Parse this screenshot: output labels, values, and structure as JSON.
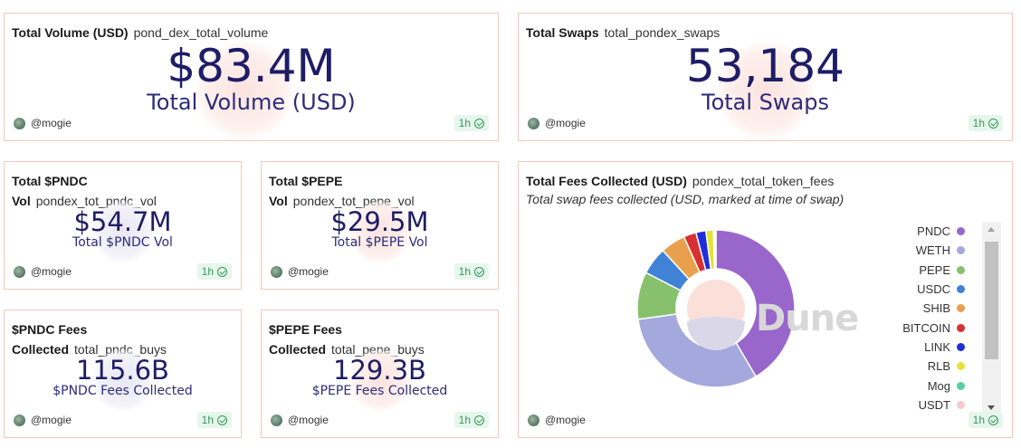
{
  "cards": {
    "total_volume": {
      "title": "Total Volume (USD)",
      "query": "pond_dex_total_volume",
      "value": "$83.4M",
      "label": "Total Volume (USD)",
      "user": "@mogie",
      "refresh": "1h"
    },
    "total_swaps": {
      "title": "Total Swaps",
      "query": "total_pondex_swaps",
      "value": "53,184",
      "label": "Total Swaps",
      "user": "@mogie",
      "refresh": "1h"
    },
    "pndc_vol": {
      "title_line1": "Total $PNDC",
      "title_line2": "Vol",
      "query": "pondex_tot_pndc_vol",
      "value": "$54.7M",
      "label": "Total $PNDC Vol",
      "user": "@mogie",
      "refresh": "1h"
    },
    "pepe_vol": {
      "title_line1": "Total $PEPE",
      "title_line2": "Vol",
      "query": "pondex_tot_pepe_vol",
      "value": "$29.5M",
      "label": "Total $PEPE Vol",
      "user": "@mogie",
      "refresh": "1h"
    },
    "pndc_fees": {
      "title_line1": "$PNDC Fees",
      "title_line2": "Collected",
      "query": "total_pndc_buys",
      "value": "115.6B",
      "label": "$PNDC Fees Collected",
      "user": "@mogie",
      "refresh": "1h"
    },
    "pepe_fees": {
      "title_line1": "$PEPE Fees",
      "title_line2": "Collected",
      "query": "total_pepe_buys",
      "value": "129.3B",
      "label": "$PEPE Fees Collected",
      "user": "@mogie",
      "refresh": "1h"
    },
    "fees_chart": {
      "title": "Total Fees Collected (USD)",
      "query": "pondex_total_token_fees",
      "subtitle": "Total swap fees collected (USD, marked at time of swap)",
      "watermark": "Dune",
      "user": "@mogie",
      "refresh": "1h"
    }
  },
  "chart_data": {
    "type": "pie",
    "title": "Total Fees Collected (USD)",
    "subtitle": "Total swap fees collected (USD, marked at time of swap)",
    "donut": true,
    "legend_position": "right",
    "categories": [
      "PNDC",
      "WETH",
      "PEPE",
      "USDC",
      "SHIB",
      "BITCOIN",
      "LINK",
      "RLB",
      "Mog",
      "USDT"
    ],
    "values": [
      40.5,
      30.5,
      9.5,
      5.5,
      5.0,
      2.5,
      2.0,
      1.5,
      0.3,
      0.2
    ],
    "colors": [
      "#9966cc",
      "#a3a8dd",
      "#88c16d",
      "#3f82d6",
      "#e9a04e",
      "#d83030",
      "#1f2ed8",
      "#e3e33c",
      "#56cfa2",
      "#f9c8c8"
    ]
  }
}
